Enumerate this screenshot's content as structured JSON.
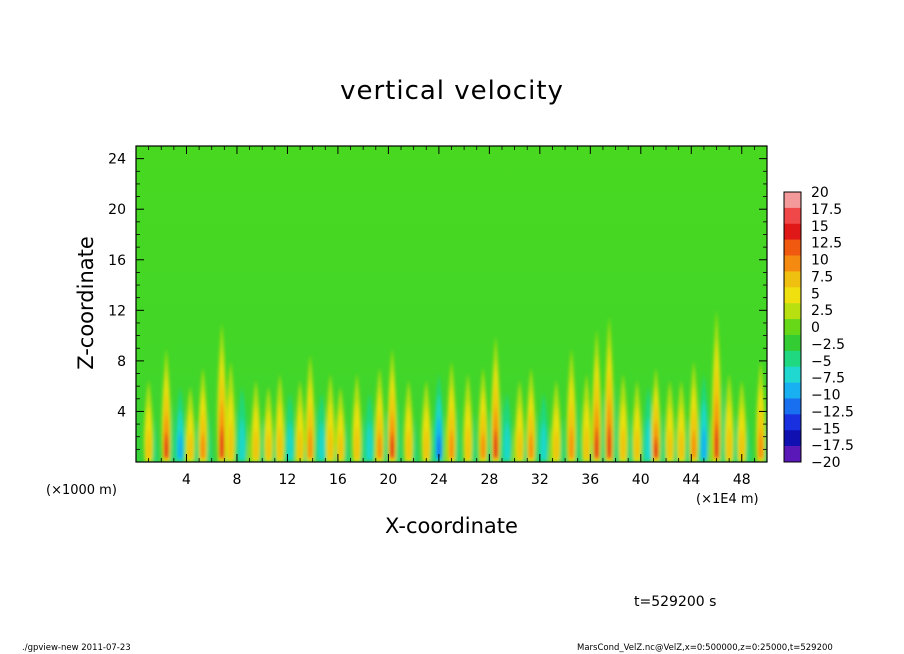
{
  "chart_data": {
    "type": "heatmap",
    "title": "vertical velocity",
    "xlabel": "X-coordinate",
    "ylabel": "Z-coordinate",
    "x_unit_left": "(×1000 m)",
    "x_unit_right": "(×1E4 m)",
    "xlim": [
      0,
      50
    ],
    "ylim": [
      0,
      25
    ],
    "xticks": [
      4,
      8,
      12,
      16,
      20,
      24,
      28,
      32,
      36,
      40,
      44,
      48
    ],
    "yticks": [
      4,
      8,
      12,
      16,
      20,
      24
    ],
    "colorbar": {
      "labels": [
        "20",
        "17.5",
        "15",
        "12.5",
        "10",
        "7.5",
        "5",
        "2.5",
        "0",
        "−2.5",
        "−5",
        "−7.5",
        "−10",
        "−12.5",
        "−15",
        "−17.5",
        "−20"
      ],
      "colors": [
        "#f59a9a",
        "#f04848",
        "#e01818",
        "#f05a10",
        "#f58a10",
        "#f0c010",
        "#f0e010",
        "#b8e010",
        "#66d818",
        "#33cc33",
        "#20d880",
        "#20d8d0",
        "#18b0f0",
        "#1870f0",
        "#1830e0",
        "#1010b0",
        "#5a18b8"
      ]
    },
    "streaks": [
      {
        "x": 1.0,
        "amp": 0.6,
        "top": 6.5
      },
      {
        "x": 2.4,
        "amp": 1.0,
        "top": 9.0
      },
      {
        "x": 3.5,
        "amp": -0.7,
        "top": 6.0
      },
      {
        "x": 4.3,
        "amp": 0.5,
        "top": 6.0
      },
      {
        "x": 5.3,
        "amp": 0.7,
        "top": 7.5
      },
      {
        "x": 6.8,
        "amp": 0.9,
        "top": 11.0
      },
      {
        "x": 7.5,
        "amp": 0.6,
        "top": 8.0
      },
      {
        "x": 8.4,
        "amp": -0.6,
        "top": 6.0
      },
      {
        "x": 9.5,
        "amp": 0.55,
        "top": 6.5
      },
      {
        "x": 10.5,
        "amp": 0.5,
        "top": 6.0
      },
      {
        "x": 11.4,
        "amp": 0.65,
        "top": 7.0
      },
      {
        "x": 12.2,
        "amp": -0.6,
        "top": 5.5
      },
      {
        "x": 13.0,
        "amp": 0.55,
        "top": 6.5
      },
      {
        "x": 13.8,
        "amp": 0.8,
        "top": 8.5
      },
      {
        "x": 14.7,
        "amp": -0.5,
        "top": 5.5
      },
      {
        "x": 15.4,
        "amp": 0.6,
        "top": 7.0
      },
      {
        "x": 16.2,
        "amp": 0.5,
        "top": 6.0
      },
      {
        "x": 17.5,
        "amp": 0.6,
        "top": 7.0
      },
      {
        "x": 18.5,
        "amp": -0.5,
        "top": 5.5
      },
      {
        "x": 19.3,
        "amp": 0.75,
        "top": 7.5
      },
      {
        "x": 20.3,
        "amp": 0.9,
        "top": 9.0
      },
      {
        "x": 21.6,
        "amp": 0.5,
        "top": 6.5
      },
      {
        "x": 23.0,
        "amp": 0.55,
        "top": 6.5
      },
      {
        "x": 24.0,
        "amp": -0.95,
        "top": 7.0
      },
      {
        "x": 25.0,
        "amp": 0.85,
        "top": 8.0
      },
      {
        "x": 26.3,
        "amp": 0.6,
        "top": 7.0
      },
      {
        "x": 27.5,
        "amp": 0.7,
        "top": 7.5
      },
      {
        "x": 28.5,
        "amp": 0.9,
        "top": 10.0
      },
      {
        "x": 29.4,
        "amp": -0.5,
        "top": 5.5
      },
      {
        "x": 30.4,
        "amp": 0.5,
        "top": 6.5
      },
      {
        "x": 31.3,
        "amp": 0.7,
        "top": 7.5
      },
      {
        "x": 32.3,
        "amp": -0.5,
        "top": 5.5
      },
      {
        "x": 33.3,
        "amp": 0.5,
        "top": 6.5
      },
      {
        "x": 34.5,
        "amp": 0.8,
        "top": 9.0
      },
      {
        "x": 35.7,
        "amp": 0.6,
        "top": 7.0
      },
      {
        "x": 36.5,
        "amp": 0.9,
        "top": 10.5
      },
      {
        "x": 37.5,
        "amp": 0.95,
        "top": 11.5
      },
      {
        "x": 38.6,
        "amp": 0.6,
        "top": 7.0
      },
      {
        "x": 39.7,
        "amp": 0.5,
        "top": 6.5
      },
      {
        "x": 40.6,
        "amp": -0.6,
        "top": 6.0
      },
      {
        "x": 41.2,
        "amp": 0.95,
        "top": 7.5
      },
      {
        "x": 42.3,
        "amp": 0.5,
        "top": 6.5
      },
      {
        "x": 43.2,
        "amp": 0.55,
        "top": 6.5
      },
      {
        "x": 44.2,
        "amp": 0.85,
        "top": 8.0
      },
      {
        "x": 45.0,
        "amp": -0.8,
        "top": 7.0
      },
      {
        "x": 46.0,
        "amp": 1.0,
        "top": 12.0
      },
      {
        "x": 47.0,
        "amp": 0.6,
        "top": 7.0
      },
      {
        "x": 48.0,
        "amp": 0.5,
        "top": 6.5
      },
      {
        "x": 49.5,
        "amp": 0.8,
        "top": 8.0
      }
    ]
  },
  "time_label": "t=529200 s",
  "footer": {
    "left": "./gpview-new   2011-07-23",
    "right": "MarsCond_VelZ.nc@VelZ,x=0:500000,z=0:25000,t=529200"
  }
}
